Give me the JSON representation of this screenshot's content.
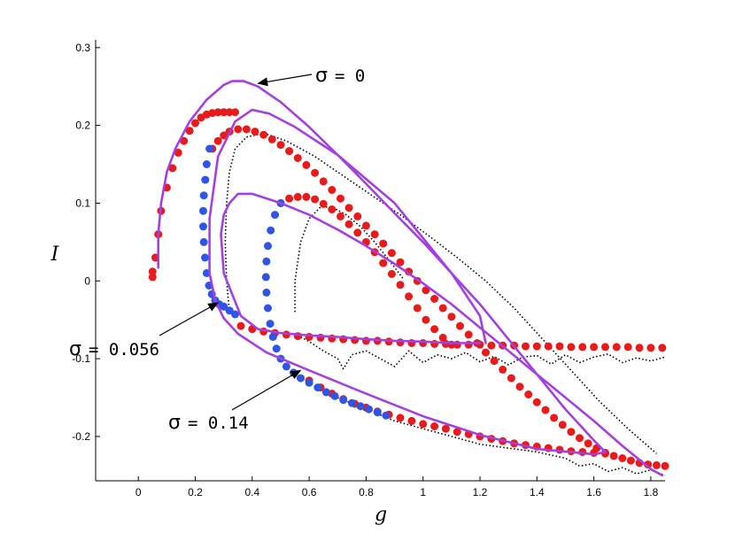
{
  "chart_data": {
    "type": "line",
    "xlabel": "g",
    "ylabel": "I",
    "xlim": [
      -0.15,
      1.85
    ],
    "ylim": [
      -0.257,
      0.31
    ],
    "x_ticks": [
      0,
      0.2,
      0.4,
      0.6,
      0.8,
      1,
      1.2,
      1.4,
      1.6,
      1.8
    ],
    "x_tick_labels": [
      "0",
      "0.2",
      "0.4",
      "0.6",
      "0.8",
      "1",
      "1.2",
      "1.4",
      "1.6",
      "1.8"
    ],
    "y_ticks": [
      0.3,
      0.2,
      0.1,
      0,
      -0.1,
      -0.2
    ],
    "y_tick_labels": [
      "0.3",
      "0.2",
      "0.1",
      "0",
      "-0.1",
      "-0.2"
    ],
    "grid": false,
    "colors": {
      "purple": "#a440e0",
      "red": "#e81a1a",
      "blue": "#2f55e8",
      "black": "#000000"
    },
    "annotations": [
      {
        "text": "σ = 0",
        "sigma": "σ",
        "rest": "= 0",
        "arrow_to": [
          0.42,
          0.254
        ]
      },
      {
        "text": "σ = 0.056",
        "sigma": "σ",
        "rest": "= 0.056",
        "arrow_to": [
          0.28,
          -0.028
        ]
      },
      {
        "text": "σ = 0.14",
        "sigma": "σ",
        "rest": "= 0.14",
        "arrow_to": [
          0.57,
          -0.115
        ]
      }
    ],
    "series": [
      {
        "style": "purple-line",
        "x": [
          0.07,
          0.07,
          0.08,
          0.1,
          0.13,
          0.18,
          0.24,
          0.3,
          0.33,
          0.37,
          0.42,
          0.5,
          0.6,
          0.7,
          0.8,
          0.9,
          1.0,
          1.1,
          1.2,
          1.3,
          1.4,
          1.5,
          1.6,
          1.64,
          1.6,
          1.4,
          1.2,
          1.0,
          0.8,
          0.6,
          0.45,
          0.35,
          0.3,
          0.27,
          0.25,
          0.25,
          0.28,
          0.34,
          0.4,
          0.46,
          0.55,
          0.7,
          0.9,
          1.1,
          1.2,
          1.22
        ],
        "y": [
          0.017,
          0.06,
          0.1,
          0.14,
          0.17,
          0.205,
          0.233,
          0.252,
          0.257,
          0.257,
          0.25,
          0.23,
          0.198,
          0.162,
          0.125,
          0.087,
          0.05,
          0.01,
          -0.03,
          -0.075,
          -0.12,
          -0.165,
          -0.205,
          -0.22,
          -0.223,
          -0.216,
          -0.198,
          -0.174,
          -0.145,
          -0.115,
          -0.092,
          -0.068,
          -0.048,
          -0.025,
          0.01,
          0.08,
          0.16,
          0.205,
          0.22,
          0.215,
          0.198,
          0.162,
          0.1,
          0.01,
          -0.045,
          -0.08
        ]
      },
      {
        "style": "purple-line",
        "x": [
          1.2,
          1.1,
          1.0,
          0.9,
          0.8,
          0.7,
          0.6,
          0.5,
          0.42,
          0.36,
          0.3,
          0.29,
          0.3,
          0.32,
          0.35,
          0.4,
          0.5,
          0.6,
          0.7,
          0.8,
          0.9,
          1.0,
          1.1,
          1.2,
          1.3,
          1.4,
          1.5,
          1.6,
          1.7,
          1.8,
          1.84
        ],
        "y": [
          -0.08,
          -0.08,
          -0.078,
          -0.077,
          -0.075,
          -0.072,
          -0.07,
          -0.067,
          -0.062,
          -0.045,
          0.01,
          0.06,
          0.085,
          0.1,
          0.112,
          0.112,
          0.1,
          0.085,
          0.066,
          0.045,
          0.022,
          -0.003,
          -0.03,
          -0.06,
          -0.09,
          -0.12,
          -0.15,
          -0.18,
          -0.212,
          -0.242,
          -0.25
        ]
      },
      {
        "style": "red-dots",
        "x": [
          0.05,
          0.05,
          0.06,
          0.07,
          0.08,
          0.1,
          0.12,
          0.14,
          0.16,
          0.18,
          0.2,
          0.22,
          0.24,
          0.26,
          0.28,
          0.3,
          0.32,
          0.34
        ],
        "y": [
          0.005,
          0.012,
          0.03,
          0.06,
          0.09,
          0.12,
          0.145,
          0.165,
          0.18,
          0.193,
          0.203,
          0.21,
          0.214,
          0.216,
          0.217,
          0.217,
          0.217,
          0.217
        ]
      },
      {
        "style": "red-dots",
        "x": [
          0.26,
          0.28,
          0.3,
          0.32,
          0.35,
          0.38,
          0.41,
          0.44,
          0.47,
          0.5,
          0.53,
          0.56,
          0.59,
          0.62,
          0.65,
          0.68,
          0.71,
          0.74,
          0.77,
          0.8,
          0.83,
          0.86,
          0.89,
          0.92,
          0.95,
          0.98,
          1.01,
          1.04,
          1.07,
          1.1,
          1.13,
          1.16,
          1.19,
          1.22,
          1.25,
          1.28,
          1.31,
          1.34,
          1.37,
          1.4,
          1.43,
          1.46,
          1.49,
          1.52,
          1.55,
          1.58,
          1.61,
          1.64,
          1.67,
          1.7,
          1.73,
          1.76,
          1.79,
          1.82,
          1.85
        ],
        "y": [
          0.17,
          0.18,
          0.187,
          0.192,
          0.195,
          0.195,
          0.192,
          0.188,
          0.182,
          0.175,
          0.167,
          0.158,
          0.149,
          0.139,
          0.128,
          0.117,
          0.106,
          0.094,
          0.083,
          0.071,
          0.06,
          0.048,
          0.036,
          0.024,
          0.012,
          0.0,
          -0.012,
          -0.023,
          -0.035,
          -0.046,
          -0.058,
          -0.069,
          -0.08,
          -0.092,
          -0.103,
          -0.114,
          -0.125,
          -0.136,
          -0.146,
          -0.156,
          -0.166,
          -0.176,
          -0.185,
          -0.194,
          -0.202,
          -0.209,
          -0.215,
          -0.221,
          -0.225,
          -0.228,
          -0.231,
          -0.234,
          -0.236,
          -0.237,
          -0.238
        ]
      },
      {
        "style": "red-dots",
        "x": [
          0.5,
          0.53,
          0.56,
          0.59,
          0.62,
          0.65,
          0.68,
          0.71,
          0.74,
          0.77,
          0.8,
          0.83,
          0.86,
          0.89,
          0.92,
          0.95,
          0.98,
          1.01,
          1.04,
          1.07,
          1.1
        ],
        "y": [
          0.1,
          0.106,
          0.108,
          0.108,
          0.105,
          0.099,
          0.092,
          0.083,
          0.073,
          0.062,
          0.05,
          0.037,
          0.023,
          0.009,
          -0.005,
          -0.02,
          -0.035,
          -0.05,
          -0.062,
          -0.073,
          -0.082
        ]
      },
      {
        "style": "red-dots",
        "x": [
          0.36,
          0.4,
          0.44,
          0.48,
          0.52,
          0.56,
          0.6,
          0.64,
          0.68,
          0.72,
          0.76,
          0.8,
          0.84,
          0.88,
          0.92,
          0.96,
          1.0,
          1.04,
          1.08,
          1.12,
          1.16,
          1.2,
          1.24,
          1.28,
          1.32,
          1.36,
          1.4,
          1.44,
          1.48,
          1.52,
          1.56,
          1.6,
          1.64,
          1.68,
          1.72,
          1.76,
          1.8,
          1.84
        ],
        "y": [
          -0.058,
          -0.062,
          -0.065,
          -0.067,
          -0.069,
          -0.071,
          -0.072,
          -0.073,
          -0.074,
          -0.075,
          -0.076,
          -0.077,
          -0.077,
          -0.078,
          -0.079,
          -0.08,
          -0.08,
          -0.081,
          -0.081,
          -0.082,
          -0.082,
          -0.082,
          -0.083,
          -0.083,
          -0.083,
          -0.084,
          -0.084,
          -0.084,
          -0.084,
          -0.085,
          -0.085,
          -0.085,
          -0.085,
          -0.085,
          -0.085,
          -0.086,
          -0.086,
          -0.086
        ]
      },
      {
        "style": "red-dots",
        "x": [
          0.6,
          0.64,
          0.68,
          0.72,
          0.76,
          0.8,
          0.84,
          0.88,
          0.92,
          0.96,
          1.0,
          1.04,
          1.08,
          1.12,
          1.16,
          1.2,
          1.24,
          1.28,
          1.32,
          1.36,
          1.4,
          1.44,
          1.48,
          1.52,
          1.56,
          1.6,
          1.64
        ],
        "y": [
          -0.128,
          -0.137,
          -0.145,
          -0.152,
          -0.158,
          -0.163,
          -0.168,
          -0.172,
          -0.176,
          -0.18,
          -0.184,
          -0.187,
          -0.19,
          -0.194,
          -0.197,
          -0.2,
          -0.203,
          -0.206,
          -0.209,
          -0.211,
          -0.213,
          -0.215,
          -0.217,
          -0.219,
          -0.22,
          -0.221,
          -0.222
        ]
      },
      {
        "style": "blue-dots",
        "x": [
          0.25,
          0.24,
          0.235,
          0.23,
          0.228,
          0.228,
          0.23,
          0.234,
          0.24,
          0.248,
          0.258,
          0.27,
          0.284,
          0.3,
          0.32,
          0.34
        ],
        "y": [
          0.17,
          0.15,
          0.13,
          0.11,
          0.09,
          0.07,
          0.05,
          0.03,
          0.01,
          -0.006,
          -0.017,
          -0.025,
          -0.03,
          -0.033,
          -0.038,
          -0.043
        ]
      },
      {
        "style": "blue-dots",
        "x": [
          0.5,
          0.48,
          0.465,
          0.455,
          0.45,
          0.448,
          0.45,
          0.455,
          0.463,
          0.473,
          0.485,
          0.5,
          0.52,
          0.545,
          0.57,
          0.6,
          0.63,
          0.66,
          0.69,
          0.72,
          0.75,
          0.78,
          0.81,
          0.84,
          0.87
        ],
        "y": [
          0.1,
          0.085,
          0.065,
          0.045,
          0.025,
          0.005,
          -0.015,
          -0.035,
          -0.055,
          -0.072,
          -0.087,
          -0.1,
          -0.11,
          -0.118,
          -0.125,
          -0.131,
          -0.137,
          -0.143,
          -0.148,
          -0.153,
          -0.157,
          -0.161,
          -0.165,
          -0.169,
          -0.173
        ]
      },
      {
        "style": "black-dotted",
        "x": [
          0.32,
          0.31,
          0.305,
          0.31,
          0.32,
          0.34,
          0.38,
          0.44,
          0.52,
          0.62,
          0.72,
          0.82,
          0.92,
          1.02,
          1.12,
          1.22,
          1.32,
          1.42,
          1.52,
          1.62,
          1.72,
          1.82
        ],
        "y": [
          -0.04,
          0.0,
          0.05,
          0.1,
          0.14,
          0.17,
          0.185,
          0.19,
          0.18,
          0.16,
          0.135,
          0.11,
          0.085,
          0.058,
          0.03,
          0.0,
          -0.035,
          -0.075,
          -0.115,
          -0.155,
          -0.19,
          -0.222
        ]
      },
      {
        "style": "black-dotted",
        "x": [
          0.55,
          0.55,
          0.57,
          0.6,
          0.64,
          0.68,
          0.73,
          0.78,
          0.83,
          0.88,
          0.93
        ],
        "y": [
          -0.04,
          0.0,
          0.05,
          0.08,
          0.095,
          0.095,
          0.085,
          0.07,
          0.05,
          0.027,
          0.003
        ]
      },
      {
        "style": "black-dotted",
        "x": [
          0.56,
          0.6,
          0.65,
          0.7,
          0.72,
          0.75,
          0.8,
          0.85,
          0.9,
          0.95,
          1.0,
          1.05,
          1.1,
          1.15,
          1.2,
          1.25,
          1.3,
          1.35,
          1.4,
          1.45,
          1.5,
          1.55,
          1.6,
          1.65,
          1.7,
          1.75,
          1.8,
          1.85
        ],
        "y": [
          -0.07,
          -0.078,
          -0.09,
          -0.1,
          -0.113,
          -0.095,
          -0.09,
          -0.1,
          -0.11,
          -0.09,
          -0.105,
          -0.095,
          -0.1,
          -0.092,
          -0.104,
          -0.097,
          -0.108,
          -0.098,
          -0.096,
          -0.107,
          -0.095,
          -0.105,
          -0.098,
          -0.094,
          -0.105,
          -0.099,
          -0.103,
          -0.098
        ]
      },
      {
        "style": "black-dotted",
        "x": [
          0.7,
          0.8,
          0.9,
          1.0,
          1.1,
          1.2,
          1.3,
          1.4,
          1.5,
          1.55,
          1.6,
          1.65,
          1.7,
          1.75,
          1.8,
          1.85
        ],
        "y": [
          -0.15,
          -0.165,
          -0.18,
          -0.19,
          -0.2,
          -0.21,
          -0.215,
          -0.22,
          -0.228,
          -0.238,
          -0.235,
          -0.245,
          -0.24,
          -0.248,
          -0.243,
          -0.25
        ]
      }
    ]
  }
}
